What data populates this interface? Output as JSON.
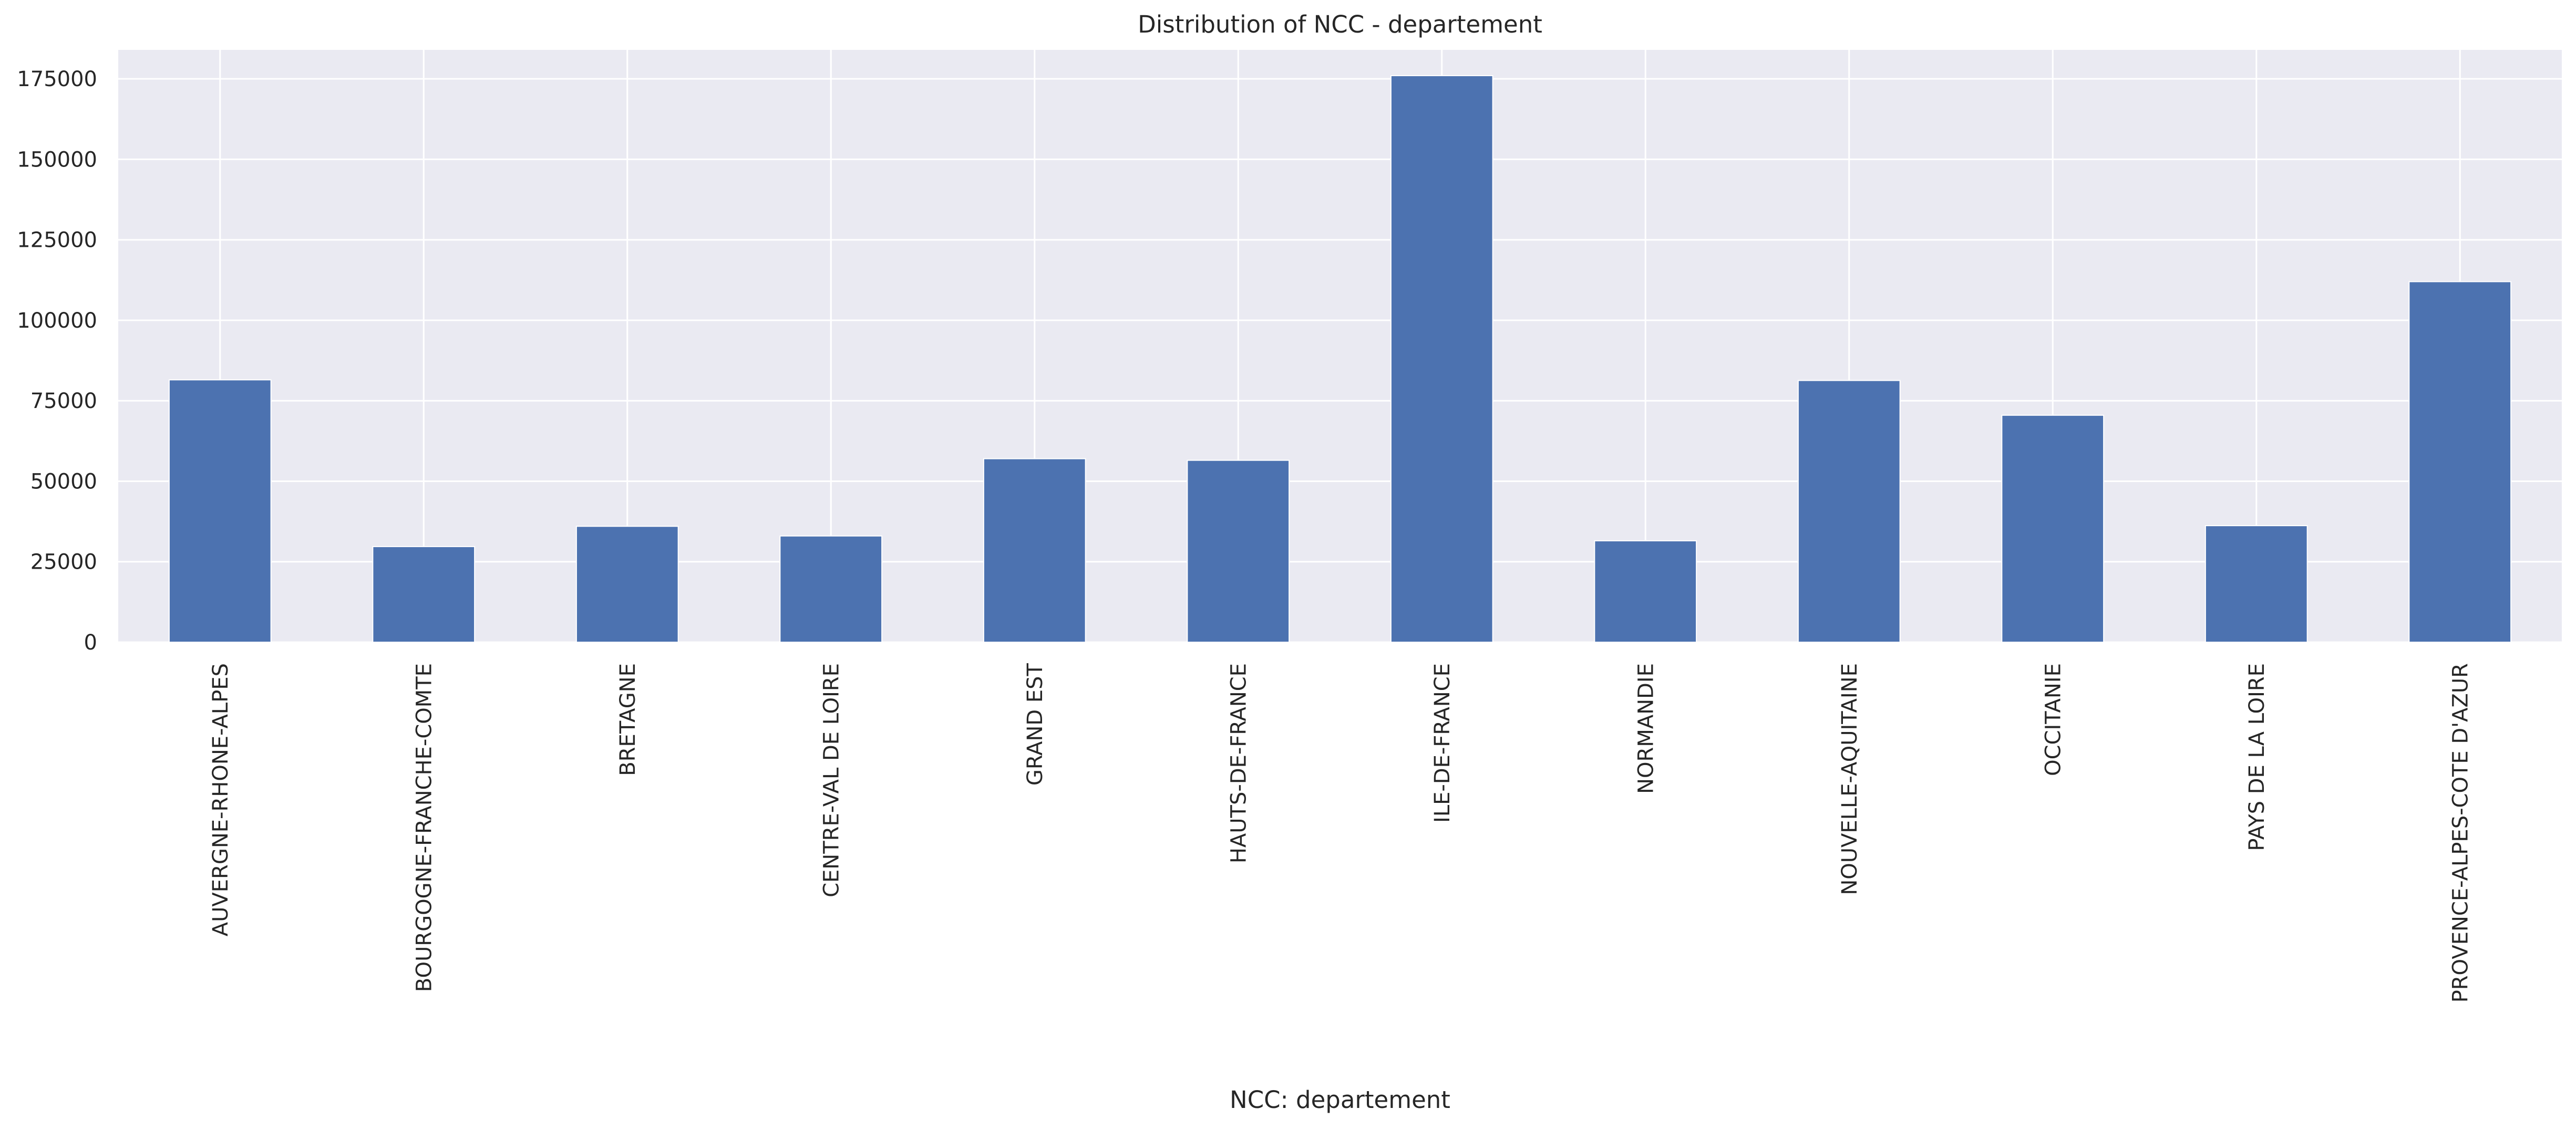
{
  "chart_data": {
    "type": "bar",
    "title": "Distribution of NCC - departement",
    "xlabel": "NCC: departement",
    "ylabel": "",
    "categories": [
      "AUVERGNE-RHONE-ALPES",
      "BOURGOGNE-FRANCHE-COMTE",
      "BRETAGNE",
      "CENTRE-VAL DE LOIRE",
      "GRAND EST",
      "HAUTS-DE-FRANCE",
      "ILE-DE-FRANCE",
      "NORMANDIE",
      "NOUVELLE-AQUITAINE",
      "OCCITANIE",
      "PAYS DE LA LOIRE",
      "PROVENCE-ALPES-COTE D'AZUR"
    ],
    "values": [
      81500,
      29700,
      36000,
      33000,
      57000,
      56500,
      176000,
      31500,
      81300,
      70500,
      36200,
      112000
    ],
    "yticks": [
      "0",
      "25000",
      "50000",
      "75000",
      "100000",
      "125000",
      "150000",
      "175000"
    ],
    "ylim": [
      0,
      184000
    ],
    "grid": true,
    "bar_color": "#4c72b0",
    "background_color": "#eaeaf2"
  }
}
